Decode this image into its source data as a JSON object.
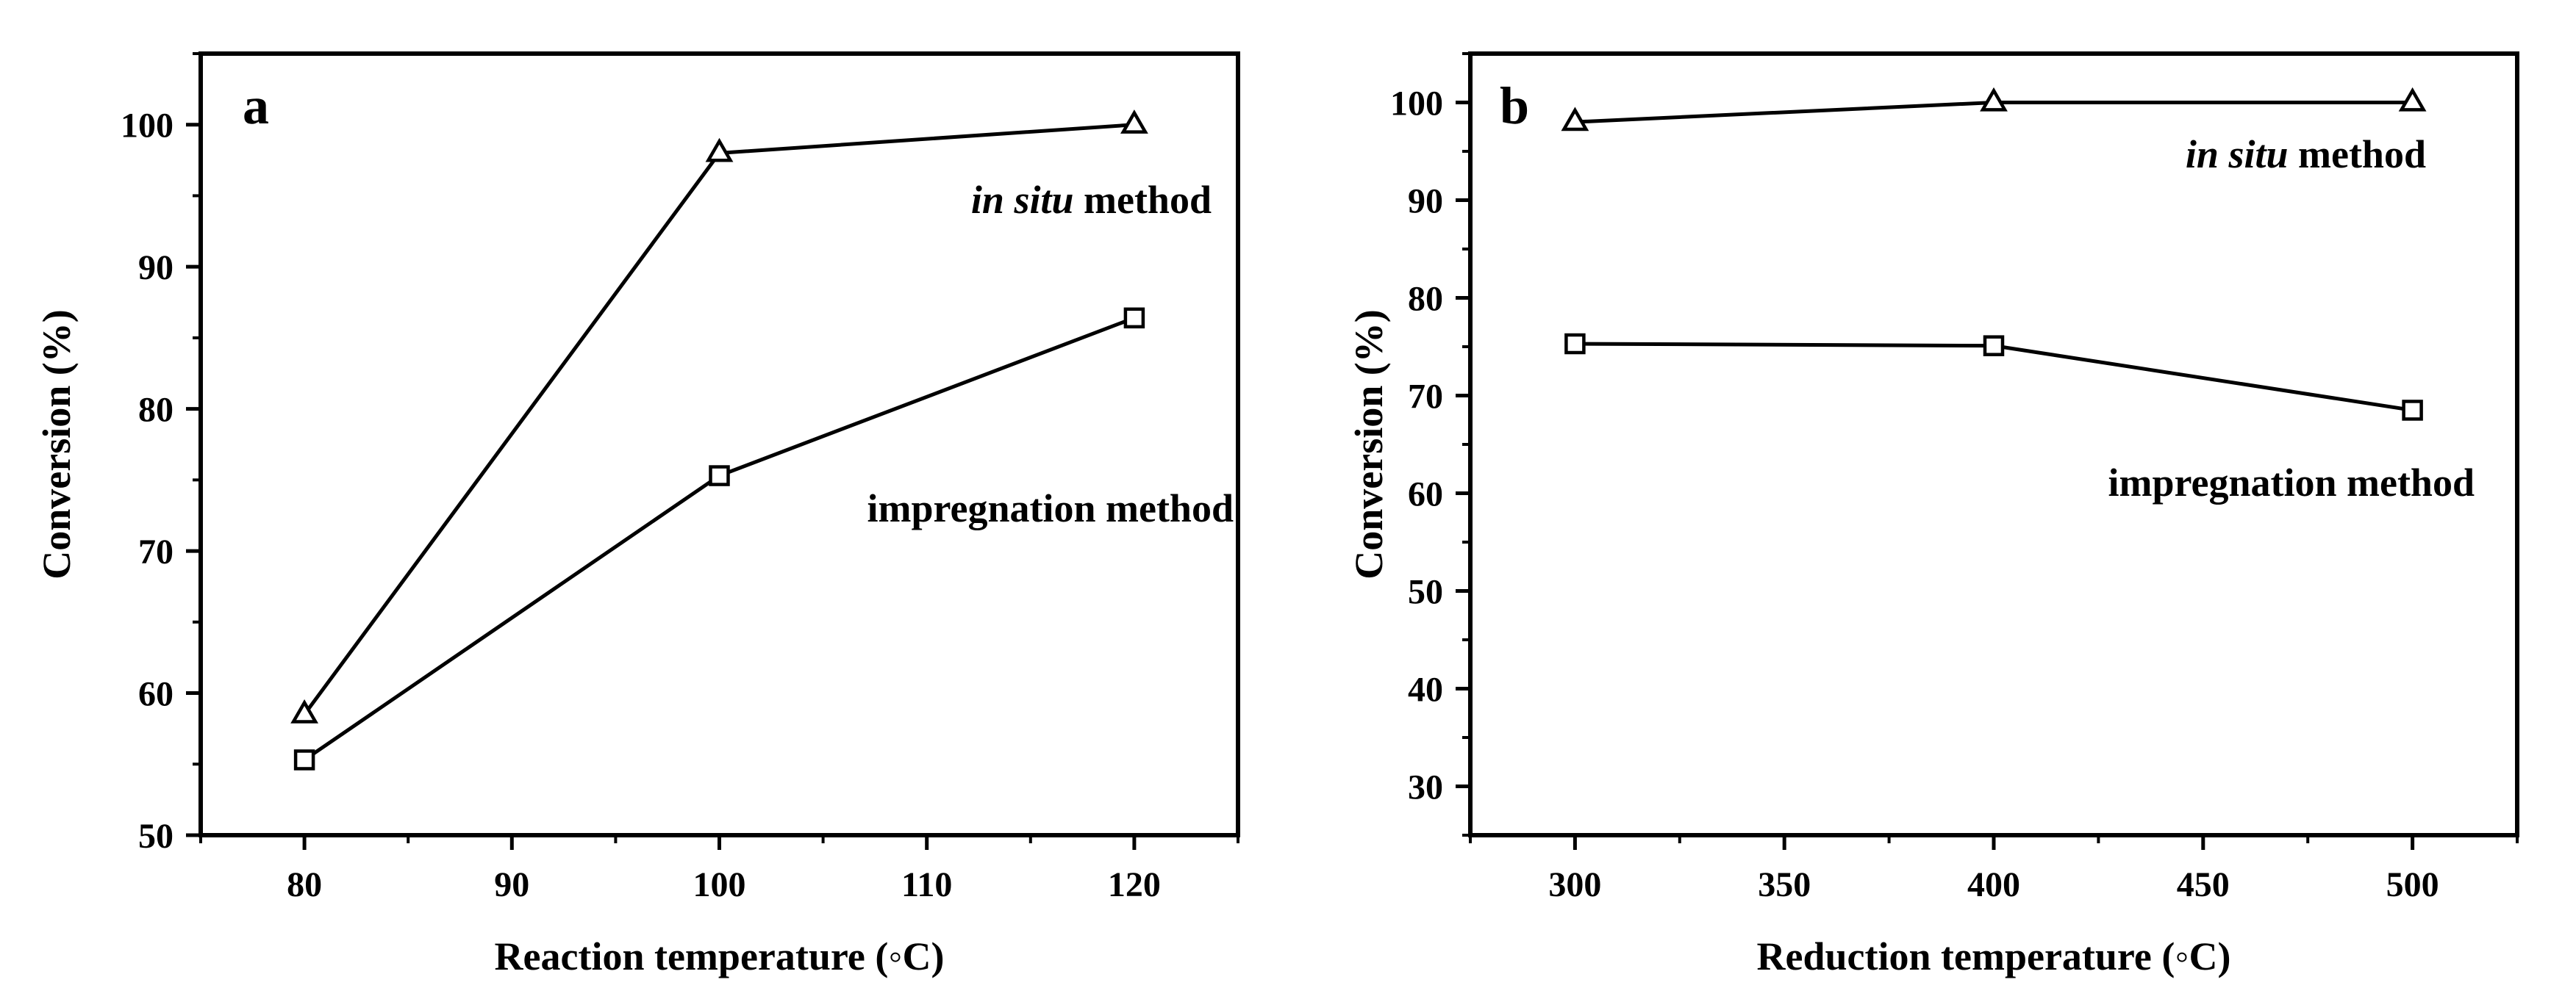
{
  "chart_data": [
    {
      "type": "line",
      "panel_label": "a",
      "title": "",
      "xlabel": "Reaction temperature (◦C)",
      "ylabel": "Conversion (%)",
      "xlim": [
        75,
        125
      ],
      "ylim": [
        50,
        105
      ],
      "xticks": [
        80,
        90,
        100,
        110,
        120
      ],
      "yticks": [
        50,
        60,
        70,
        80,
        90,
        100
      ],
      "xtick_labels": [
        "80",
        "90",
        "100",
        "110",
        "120"
      ],
      "ytick_labels": [
        "50",
        "60",
        "70",
        "80",
        "90",
        "100"
      ],
      "grid": false,
      "series": [
        {
          "name": "in situ method",
          "label_italic": "in situ",
          "label_rest": " method",
          "marker": "triangle",
          "x": [
            80,
            100,
            120
          ],
          "values": [
            58.5,
            98,
            100
          ]
        },
        {
          "name": "impregnation method",
          "label_italic": "",
          "label_rest": "impregnation method",
          "marker": "square",
          "x": [
            80,
            100,
            120
          ],
          "values": [
            55.3,
            75.3,
            86.4
          ]
        }
      ]
    },
    {
      "type": "line",
      "panel_label": "b",
      "title": "",
      "xlabel": "Reduction temperature (◦C)",
      "ylabel": "Conversion (%)",
      "xlim": [
        275,
        525
      ],
      "ylim": [
        25,
        105
      ],
      "xticks": [
        300,
        350,
        400,
        450,
        500
      ],
      "yticks": [
        30,
        40,
        50,
        60,
        70,
        80,
        90,
        100
      ],
      "xtick_labels": [
        "300",
        "350",
        "400",
        "450",
        "500"
      ],
      "ytick_labels": [
        "30",
        "40",
        "50",
        "60",
        "70",
        "80",
        "90",
        "100"
      ],
      "grid": false,
      "series": [
        {
          "name": "in situ method",
          "label_italic": "in situ",
          "label_rest": " method",
          "marker": "triangle",
          "x": [
            300,
            400,
            500
          ],
          "values": [
            98,
            100,
            100
          ]
        },
        {
          "name": "impregnation method",
          "label_italic": "",
          "label_rest": "impregnation method",
          "marker": "square",
          "x": [
            300,
            400,
            500
          ],
          "values": [
            75.3,
            75.1,
            68.5
          ]
        }
      ]
    }
  ]
}
